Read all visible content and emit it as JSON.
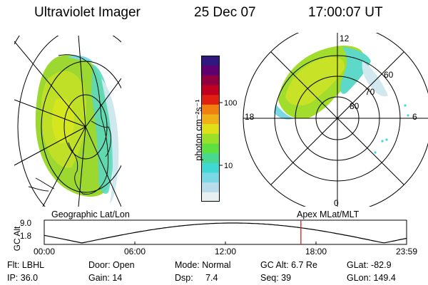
{
  "header": {
    "instrument": "Ultraviolet Imager",
    "date": "25 Dec 07",
    "time": "17:00:07 UT"
  },
  "colorbar": {
    "unit_label": "photon cm⁻²s⁻¹",
    "ticks": [
      "100",
      "10"
    ],
    "colors": [
      "#e8f0f0",
      "#b8dcec",
      "#7ad8e4",
      "#40d8d4",
      "#48d890",
      "#5ee040",
      "#9ae028",
      "#e0e018",
      "#f0b018",
      "#f08010",
      "#e02010",
      "#c00020",
      "#900040",
      "#600070",
      "#301880"
    ]
  },
  "polar": {
    "mlt_labels": [
      "12",
      "18",
      "6",
      "0"
    ],
    "lat_labels": [
      "60",
      "70",
      "80"
    ]
  },
  "timeline": {
    "left_label": "Geographic Lat/Lon",
    "right_label": "Apex MLat/MLT",
    "axis_label": "GC Alt",
    "y_ticks": [
      "9.0",
      "1.8"
    ],
    "x_ticks": [
      "00:00",
      "06:00",
      "12:00",
      "18:00",
      "23:59"
    ],
    "current_time_hours": 17.0,
    "marker_color": "#d02020"
  },
  "info": {
    "flt": "Flt: LBHL",
    "door": "Door: Open",
    "mode": "Mode: Normal",
    "gc_alt": "GC Alt: 6.7 Re",
    "glat": "GLat: -82.9",
    "ip": "IP: 36.0",
    "gain": "Gain: 14",
    "dsp": "Dsp:     7.4",
    "seq": "Seq: 39",
    "glon": "GLon: 149.4"
  }
}
